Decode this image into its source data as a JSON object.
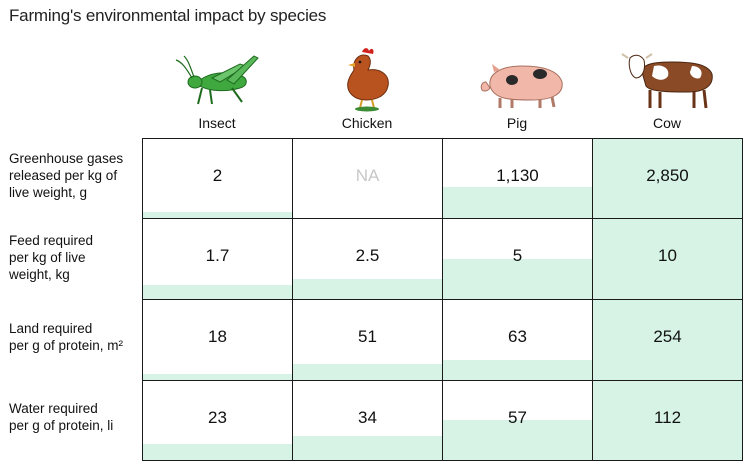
{
  "title": "Farming's environmental impact by species",
  "colors": {
    "fill": "#d6f3e6",
    "border": "#1a1a1a",
    "na": "#c8c8c8"
  },
  "chart_data": {
    "type": "table",
    "title": "Farming's environmental impact by species",
    "columns": [
      {
        "label": "Insect",
        "icon": "grasshopper-icon"
      },
      {
        "label": "Chicken",
        "icon": "chicken-icon"
      },
      {
        "label": "Pig",
        "icon": "pig-icon"
      },
      {
        "label": "Cow",
        "icon": "cow-icon"
      }
    ],
    "rows": [
      {
        "label_lines": [
          "Greenhouse gases",
          "released per kg of",
          "live weight, g"
        ],
        "display": [
          "2",
          "NA",
          "1,130",
          "2,850"
        ],
        "values": [
          2,
          null,
          1130,
          2850
        ],
        "max": 2850
      },
      {
        "label_lines": [
          "Feed required",
          "per kg of live",
          "weight, kg"
        ],
        "display": [
          "1.7",
          "2.5",
          "5",
          "10"
        ],
        "values": [
          1.7,
          2.5,
          5,
          10
        ],
        "max": 10
      },
      {
        "label_lines": [
          "Land required",
          "per g of protein, m²"
        ],
        "display": [
          "18",
          "51",
          "63",
          "254"
        ],
        "values": [
          18,
          51,
          63,
          254
        ],
        "max": 254
      },
      {
        "label_lines": [
          "Water required",
          "per g of protein, li"
        ],
        "display": [
          "23",
          "34",
          "57",
          "112"
        ],
        "values": [
          23,
          34,
          57,
          112
        ],
        "max": 112
      }
    ]
  }
}
